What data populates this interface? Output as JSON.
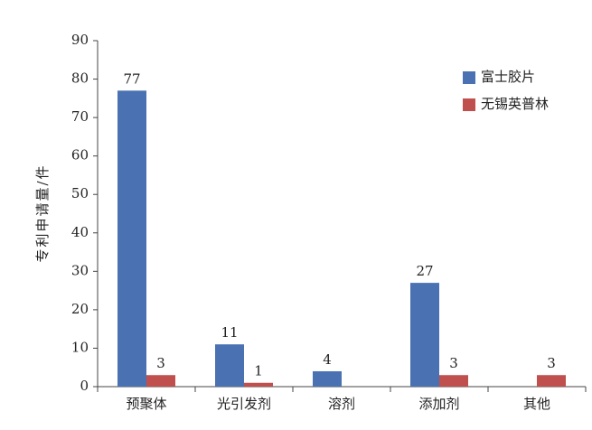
{
  "chart_data": {
    "type": "bar",
    "y_label": "专利申请量/件",
    "categories": [
      "预聚体",
      "光引发剂",
      "溶剂",
      "添加剂",
      "其他"
    ],
    "series": [
      {
        "name": "富士胶片",
        "color": "#4a72b2",
        "values": [
          77,
          11,
          4,
          27,
          null
        ]
      },
      {
        "name": "无锡英普林",
        "color": "#c0504d",
        "values": [
          3,
          1,
          null,
          3,
          3
        ]
      }
    ],
    "ylim": [
      0,
      90
    ],
    "yticks": [
      0,
      10,
      20,
      30,
      40,
      50,
      60,
      70,
      80,
      90
    ],
    "legend": "top-right",
    "data_labels": true
  }
}
